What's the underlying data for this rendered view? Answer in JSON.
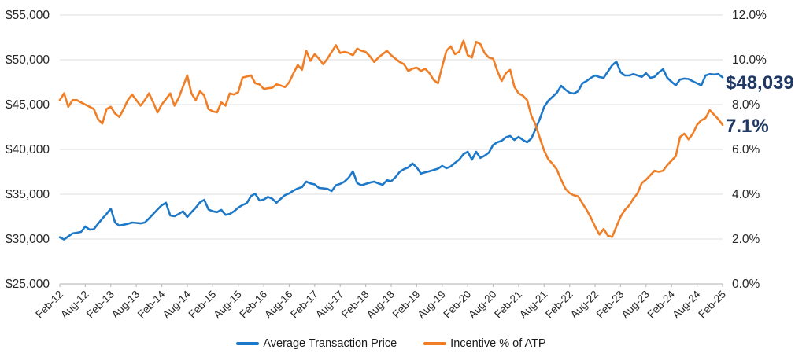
{
  "chart_data": {
    "type": "line",
    "title": "",
    "x_tick_labels": [
      "Feb-12",
      "Aug-12",
      "Feb-13",
      "Aug-13",
      "Feb-14",
      "Aug-14",
      "Feb-15",
      "Aug-15",
      "Feb-16",
      "Aug-16",
      "Feb-17",
      "Aug-17",
      "Feb-18",
      "Aug-18",
      "Feb-19",
      "Aug-19",
      "Feb-20",
      "Aug-20",
      "Feb-21",
      "Aug-21",
      "Feb-22",
      "Aug-22",
      "Feb-23",
      "Aug-23",
      "Feb-24",
      "Aug-24",
      "Feb-25"
    ],
    "points_per_tick": 6,
    "left_axis": {
      "labels": [
        "$55,000",
        "$50,000",
        "$45,000",
        "$40,000",
        "$35,000",
        "$30,000",
        "$25,000"
      ],
      "min": 25000,
      "max": 55000,
      "step": 5000
    },
    "right_axis": {
      "labels": [
        "12.0%",
        "10.0%",
        "8.0%",
        "6.0%",
        "4.0%",
        "2.0%",
        "0.0%"
      ],
      "min": 0,
      "max": 12,
      "step": 2
    },
    "grid_color": "#DCDCDC",
    "axis_color": "#BFBFBF",
    "text_color": "#262626",
    "series": [
      {
        "name": "Average Transaction Price",
        "axis": "left",
        "color": "#1E78C8",
        "values": [
          30200,
          29950,
          30300,
          30620,
          30700,
          30790,
          31400,
          31050,
          31100,
          31700,
          32280,
          32800,
          33400,
          31840,
          31500,
          31600,
          31700,
          31840,
          31800,
          31750,
          31840,
          32300,
          32800,
          33300,
          33770,
          34040,
          32630,
          32540,
          32800,
          33100,
          32460,
          33000,
          33500,
          34100,
          34380,
          33300,
          33100,
          33000,
          33250,
          32700,
          32800,
          33100,
          33500,
          33800,
          34000,
          34800,
          35060,
          34300,
          34400,
          34700,
          34500,
          34050,
          34500,
          34900,
          35100,
          35400,
          35650,
          35800,
          36400,
          36200,
          36100,
          35700,
          35650,
          35600,
          35350,
          36000,
          36150,
          36400,
          36850,
          37550,
          36250,
          36000,
          36150,
          36300,
          36400,
          36200,
          36050,
          36560,
          36450,
          36900,
          37500,
          37800,
          37980,
          38430,
          38000,
          37300,
          37450,
          37560,
          37700,
          37850,
          38160,
          37900,
          38100,
          38500,
          38860,
          39470,
          39740,
          38860,
          39740,
          39040,
          39300,
          39640,
          40500,
          40790,
          40960,
          41350,
          41500,
          41050,
          41400,
          41050,
          40790,
          41230,
          42280,
          43420,
          44740,
          45440,
          45880,
          46320,
          47100,
          46670,
          46320,
          46230,
          46490,
          47370,
          47630,
          47980,
          48250,
          48070,
          47980,
          48680,
          49380,
          49800,
          48600,
          48250,
          48250,
          48400,
          48250,
          48100,
          48500,
          47980,
          48100,
          48600,
          48950,
          47980,
          47540,
          47150,
          47800,
          47900,
          47850,
          47600,
          47370,
          47150,
          48250,
          48400,
          48350,
          48400,
          48039
        ]
      },
      {
        "name": "Incentive % of ATP",
        "axis": "right",
        "color": "#F07E26",
        "values": [
          8.2,
          8.5,
          7.9,
          8.2,
          8.2,
          8.1,
          8.0,
          7.9,
          7.8,
          7.35,
          7.15,
          7.8,
          7.9,
          7.6,
          7.45,
          7.8,
          8.2,
          8.45,
          8.2,
          7.95,
          8.2,
          8.5,
          8.1,
          7.65,
          8.0,
          8.25,
          8.5,
          7.95,
          8.3,
          8.8,
          9.3,
          8.5,
          8.2,
          8.6,
          8.4,
          7.8,
          7.7,
          7.65,
          8.1,
          7.95,
          8.5,
          8.45,
          8.55,
          9.2,
          9.25,
          9.3,
          8.95,
          8.9,
          8.7,
          8.73,
          8.75,
          8.9,
          8.85,
          8.78,
          9.0,
          9.4,
          9.77,
          9.55,
          10.4,
          9.95,
          10.25,
          10.05,
          9.8,
          10.05,
          10.35,
          10.65,
          10.3,
          10.35,
          10.3,
          10.2,
          10.5,
          10.4,
          10.35,
          10.15,
          9.9,
          10.1,
          10.25,
          10.4,
          10.2,
          10.05,
          9.9,
          9.8,
          9.5,
          9.6,
          9.65,
          9.5,
          9.6,
          9.4,
          9.1,
          8.95,
          9.7,
          10.4,
          10.6,
          10.25,
          10.35,
          10.85,
          10.2,
          10.1,
          10.8,
          10.7,
          10.3,
          10.1,
          10.05,
          9.5,
          9.05,
          9.4,
          9.55,
          8.8,
          8.5,
          8.4,
          8.2,
          7.5,
          7.1,
          6.5,
          5.95,
          5.55,
          5.35,
          5.1,
          4.65,
          4.25,
          4.05,
          3.95,
          3.9,
          3.6,
          3.3,
          2.95,
          2.55,
          2.2,
          2.45,
          2.15,
          2.1,
          2.55,
          3.0,
          3.3,
          3.5,
          3.8,
          4.05,
          4.5,
          4.65,
          4.85,
          5.05,
          5.0,
          5.05,
          5.3,
          5.5,
          5.7,
          6.55,
          6.7,
          6.45,
          6.7,
          7.1,
          7.3,
          7.4,
          7.75,
          7.55,
          7.35,
          7.1
        ]
      }
    ],
    "end_labels": {
      "atp": "$48,039",
      "incentive": "7.1%",
      "color": "#1F3864"
    },
    "legend": [
      {
        "label": "Average Transaction Price",
        "color": "#1E78C8"
      },
      {
        "label": "Incentive % of ATP",
        "color": "#F07E26"
      }
    ]
  }
}
